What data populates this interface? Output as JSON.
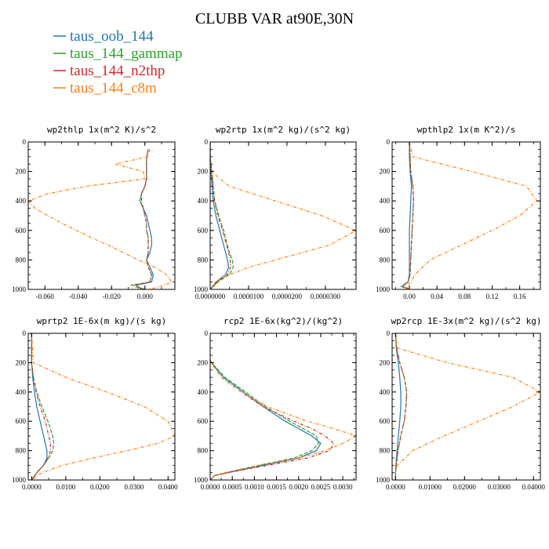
{
  "figure": {
    "title": "CLUBB VAR at90E,30N"
  },
  "legend": [
    {
      "label": "taus_oob_144",
      "color": "#1f77b4"
    },
    {
      "label": "taus_144_gammap",
      "color": "#2ca02c"
    },
    {
      "label": "taus_144_n2thp",
      "color": "#d62728"
    },
    {
      "label": "taus_144_c8m",
      "color": "#ff7f0e"
    }
  ],
  "chart_data": [
    {
      "type": "line",
      "title": "wp2thlp  1x(m^2 K)/s^2",
      "xlim": [
        -0.07,
        0.018
      ],
      "ylim": [
        0,
        1000
      ],
      "xticks": [
        "-0.060",
        "-0.040",
        "-0.020",
        "0.000"
      ],
      "xtick_values": [
        -0.06,
        -0.04,
        -0.02,
        0.0
      ],
      "yticks": [
        "0",
        "200",
        "400",
        "600",
        "800",
        "1000"
      ],
      "y": [
        50,
        100,
        150,
        200,
        250,
        300,
        350,
        400,
        450,
        500,
        550,
        600,
        650,
        700,
        750,
        800,
        850,
        900,
        950,
        970,
        990,
        1000
      ],
      "series": [
        {
          "name": "taus_oob_144",
          "values": [
            0.002,
            0.001,
            0.001,
            0.001,
            0.001,
            0.0,
            -0.002,
            -0.003,
            -0.001,
            0.001,
            0.002,
            0.003,
            0.004,
            0.004,
            0.003,
            0.001,
            0.003,
            0.005,
            0.004,
            -0.005,
            -0.003,
            0.0
          ]
        },
        {
          "name": "taus_144_gammap",
          "values": [
            0.002,
            0.001,
            0.001,
            0.001,
            0.001,
            0.0,
            -0.002,
            -0.003,
            -0.001,
            0.0,
            0.001,
            0.001,
            0.002,
            0.002,
            0.002,
            0.001,
            0.002,
            0.004,
            0.003,
            -0.008,
            -0.004,
            0.0
          ]
        },
        {
          "name": "taus_144_n2thp",
          "values": [
            0.002,
            0.001,
            0.001,
            0.001,
            0.001,
            0.0,
            -0.002,
            -0.002,
            -0.001,
            0.0,
            0.001,
            0.001,
            0.002,
            0.002,
            0.002,
            0.001,
            0.002,
            0.004,
            0.003,
            -0.006,
            -0.003,
            0.0
          ]
        },
        {
          "name": "taus_144_c8m",
          "values": [
            0.003,
            0.002,
            -0.018,
            -0.001,
            0.0,
            -0.035,
            -0.058,
            -0.07,
            -0.066,
            -0.058,
            -0.05,
            -0.041,
            -0.032,
            -0.022,
            -0.013,
            -0.004,
            0.006,
            0.013,
            0.016,
            0.012,
            0.006,
            0.002
          ]
        }
      ]
    },
    {
      "type": "line",
      "title": "wp2rtp  1x(m^2 kg)/(s^2 kg)",
      "xlim": [
        0,
        3.8e-05
      ],
      "ylim": [
        0,
        1000
      ],
      "xticks": [
        "0.0000000",
        "0.0000100",
        "0.0000200",
        "0.0000300"
      ],
      "xtick_values": [
        0,
        1e-05,
        2e-05,
        3e-05
      ],
      "yticks": [
        "0",
        "200",
        "400",
        "600",
        "800",
        "1000"
      ],
      "y": [
        0,
        100,
        200,
        300,
        400,
        500,
        600,
        700,
        750,
        800,
        850,
        900,
        950,
        1000
      ],
      "series": [
        {
          "name": "taus_oob_144",
          "values": [
            0.0,
            0.0,
            2e-07,
            5e-07,
            8e-07,
            1.5e-06,
            2.5e-06,
            3.5e-06,
            4e-06,
            4.5e-06,
            4.8e-06,
            4e-06,
            1.5e-06,
            0.0
          ]
        },
        {
          "name": "taus_144_gammap",
          "values": [
            0.0,
            0.0,
            5e-07,
            8e-07,
            1.2e-06,
            2.2e-06,
            3.5e-06,
            4.5e-06,
            5e-06,
            5.8e-06,
            6e-06,
            5e-06,
            2e-06,
            0.0
          ]
        },
        {
          "name": "taus_144_n2thp",
          "values": [
            0.0,
            0.0,
            4e-07,
            7e-07,
            1.1e-06,
            2e-06,
            3.2e-06,
            4.3e-06,
            4.8e-06,
            5.2e-06,
            5.3e-06,
            4.5e-06,
            1.8e-06,
            0.0
          ]
        },
        {
          "name": "taus_144_c8m",
          "values": [
            0.0,
            0.0,
            2e-07,
            5e-06,
            1.7e-05,
            2.9e-05,
            3.8e-05,
            3.1e-05,
            2.4e-05,
            1.7e-05,
            1e-05,
            5e-06,
            1.5e-06,
            0.0
          ]
        }
      ]
    },
    {
      "type": "line",
      "title": "wpthlp2  1x(m K^2)/s",
      "xlim": [
        -0.025,
        0.19
      ],
      "ylim": [
        0,
        1000
      ],
      "xticks": [
        "0.00",
        "0.04",
        "0.08",
        "0.12",
        "0.16"
      ],
      "xtick_values": [
        0,
        0.04,
        0.08,
        0.12,
        0.16
      ],
      "yticks": [
        "0",
        "200",
        "400",
        "600",
        "800",
        "1000"
      ],
      "y": [
        0,
        100,
        200,
        300,
        400,
        500,
        600,
        700,
        800,
        900,
        950,
        980,
        1000
      ],
      "series": [
        {
          "name": "taus_oob_144",
          "values": [
            0.0,
            0.0,
            0.001,
            0.003,
            0.002,
            0.001,
            0.0,
            0.0,
            0.0,
            0.0,
            -0.002,
            -0.01,
            0.0
          ]
        },
        {
          "name": "taus_144_gammap",
          "values": [
            0.0,
            0.001,
            0.002,
            0.005,
            0.006,
            0.005,
            0.004,
            0.003,
            0.002,
            0.001,
            -0.002,
            -0.012,
            0.0
          ]
        },
        {
          "name": "taus_144_n2thp",
          "values": [
            0.0,
            0.001,
            0.002,
            0.005,
            0.006,
            0.005,
            0.004,
            0.003,
            0.002,
            0.001,
            -0.002,
            -0.011,
            0.0
          ]
        },
        {
          "name": "taus_144_c8m",
          "values": [
            0.0,
            0.005,
            0.09,
            0.17,
            0.185,
            0.16,
            0.12,
            0.075,
            0.03,
            0.008,
            0.002,
            -0.005,
            0.0
          ]
        }
      ]
    },
    {
      "type": "line",
      "title": "wprtp2  1E-6x(m kg)/(s kg)",
      "xlim": [
        -0.001,
        0.042
      ],
      "ylim": [
        0,
        1000
      ],
      "xticks": [
        "0.0000",
        "0.0100",
        "0.0200",
        "0.0300",
        "0.0400"
      ],
      "xtick_values": [
        0,
        0.01,
        0.02,
        0.03,
        0.04
      ],
      "yticks": [
        "0",
        "200",
        "400",
        "600",
        "800",
        "1000"
      ],
      "y": [
        0,
        200,
        300,
        400,
        500,
        600,
        700,
        750,
        800,
        850,
        900,
        950,
        1000
      ],
      "series": [
        {
          "name": "taus_oob_144",
          "values": [
            0.0,
            0.0,
            0.0003,
            0.0008,
            0.0015,
            0.0025,
            0.0035,
            0.004,
            0.0045,
            0.0045,
            0.0035,
            0.0015,
            0.0
          ]
        },
        {
          "name": "taus_144_gammap",
          "values": [
            0.0,
            0.0,
            0.0005,
            0.0015,
            0.003,
            0.0048,
            0.0062,
            0.0065,
            0.0062,
            0.005,
            0.0035,
            0.0015,
            0.0
          ]
        },
        {
          "name": "taus_144_n2thp",
          "values": [
            0.0,
            0.0,
            0.0005,
            0.0013,
            0.0025,
            0.004,
            0.005,
            0.0055,
            0.0055,
            0.0048,
            0.0035,
            0.0015,
            0.0
          ]
        },
        {
          "name": "taus_144_c8m",
          "values": [
            0.0,
            0.0005,
            0.01,
            0.022,
            0.033,
            0.04,
            0.042,
            0.037,
            0.028,
            0.018,
            0.009,
            0.003,
            0.0
          ]
        }
      ]
    },
    {
      "type": "line",
      "title": "rcp2  1E-6x(kg^2)/(kg^2)",
      "xlim": [
        0,
        0.0033
      ],
      "ylim": [
        0,
        1000
      ],
      "xticks": [
        "0.0000",
        "0.0005",
        "0.0010",
        "0.0015",
        "0.0020",
        "0.0025",
        "0.0030"
      ],
      "xtick_values": [
        0,
        0.0005,
        0.001,
        0.0015,
        0.002,
        0.0025,
        0.003
      ],
      "yticks": [
        "0",
        "200",
        "400",
        "600",
        "800",
        "1000"
      ],
      "y": [
        180,
        200,
        300,
        400,
        500,
        600,
        650,
        700,
        750,
        800,
        850,
        900,
        950,
        970,
        1000
      ],
      "series": [
        {
          "name": "taus_oob_144",
          "values": [
            0.0,
            3e-05,
            0.0003,
            0.00075,
            0.0012,
            0.0017,
            0.002,
            0.0023,
            0.0025,
            0.0024,
            0.002,
            0.0012,
            0.0004,
            0.0001,
            0.0
          ]
        },
        {
          "name": "taus_144_gammap",
          "values": [
            0.0,
            3e-05,
            0.00033,
            0.0008,
            0.00125,
            0.0018,
            0.0021,
            0.0024,
            0.00245,
            0.0023,
            0.0019,
            0.0011,
            0.00035,
            0.0001,
            0.0
          ]
        },
        {
          "name": "taus_144_n2thp",
          "values": [
            0.0,
            2e-05,
            0.00025,
            0.0007,
            0.0012,
            0.0019,
            0.0023,
            0.0026,
            0.0028,
            0.0027,
            0.0022,
            0.0013,
            0.0004,
            0.0001,
            0.0
          ]
        },
        {
          "name": "taus_144_c8m",
          "values": [
            0.0,
            2e-05,
            0.00025,
            0.0007,
            0.0013,
            0.0022,
            0.0028,
            0.0033,
            0.003,
            0.0026,
            0.002,
            0.0011,
            0.00035,
            0.0001,
            0.0
          ]
        }
      ]
    },
    {
      "type": "line",
      "title": "wp2rcp  1E-3x(m^2 kg)/(s^2 kg)",
      "xlim": [
        -0.001,
        0.042
      ],
      "ylim": [
        0,
        1000
      ],
      "xticks": [
        "0.0000",
        "0.01000",
        "0.02000",
        "0.03000",
        "0.04000"
      ],
      "xtick_values": [
        0,
        0.01,
        0.02,
        0.03,
        0.04
      ],
      "yticks": [
        "0",
        "200",
        "400",
        "600",
        "800",
        "1000"
      ],
      "y": [
        0,
        100,
        200,
        300,
        400,
        500,
        600,
        700,
        800,
        900,
        950,
        1000
      ],
      "series": [
        {
          "name": "taus_oob_144",
          "values": [
            0.0,
            0.0002,
            0.0008,
            0.0012,
            0.0015,
            0.0015,
            0.0012,
            0.0008,
            0.0004,
            0.0001,
            0.0,
            0.0
          ]
        },
        {
          "name": "taus_144_gammap",
          "values": [
            0.0,
            0.0003,
            0.0012,
            0.0025,
            0.0032,
            0.003,
            0.0025,
            0.0015,
            0.0007,
            0.0002,
            0.0,
            0.0
          ]
        },
        {
          "name": "taus_144_n2thp",
          "values": [
            0.0,
            0.0003,
            0.0012,
            0.0025,
            0.0032,
            0.003,
            0.0025,
            0.0015,
            0.0007,
            0.0002,
            0.0,
            0.0
          ]
        },
        {
          "name": "taus_144_c8m",
          "values": [
            0.0,
            0.0005,
            0.015,
            0.034,
            0.042,
            0.034,
            0.024,
            0.014,
            0.005,
            0.0005,
            0.0,
            0.0
          ]
        }
      ]
    }
  ]
}
